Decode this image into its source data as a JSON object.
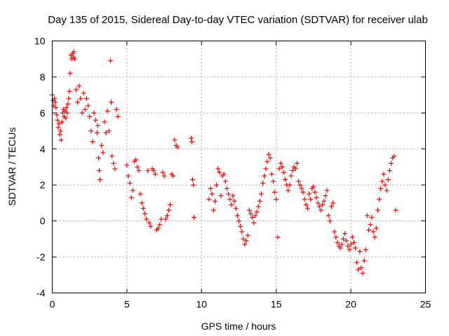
{
  "chart_data": {
    "type": "scatter",
    "title": "Day 135 of 2015, Sidereal Day-to-day VTEC variation (SDTVAR) for receiver ulab",
    "xlabel": "GPS time / hours",
    "ylabel": "SDTVAR / TECUs",
    "xlim": [
      0,
      25
    ],
    "ylim": [
      -4,
      10
    ],
    "xticks": [
      0,
      5,
      10,
      15,
      20,
      25
    ],
    "yticks": [
      -4,
      -2,
      0,
      2,
      4,
      6,
      8,
      10
    ],
    "grid": true,
    "marker": "+",
    "color": "#ff0000",
    "series": [
      {
        "name": "SDTVAR",
        "x": [
          0.0,
          0.05,
          0.1,
          0.15,
          0.2,
          0.25,
          0.3,
          0.35,
          0.4,
          0.45,
          0.5,
          0.55,
          0.6,
          0.65,
          0.7,
          0.75,
          0.8,
          0.85,
          0.9,
          0.95,
          1.0,
          1.05,
          1.1,
          1.15,
          1.2,
          1.25,
          1.3,
          1.35,
          1.4,
          1.45,
          1.5,
          1.6,
          1.7,
          1.8,
          1.9,
          2.0,
          2.1,
          2.2,
          2.3,
          2.4,
          2.5,
          2.6,
          2.7,
          2.8,
          2.9,
          3.0,
          3.05,
          3.1,
          3.15,
          3.2,
          3.3,
          3.4,
          3.5,
          3.6,
          3.7,
          3.8,
          3.9,
          3.95,
          4.0,
          4.1,
          4.2,
          4.3,
          4.4,
          5.0,
          5.1,
          5.2,
          5.3,
          5.4,
          5.5,
          5.6,
          5.7,
          5.8,
          5.9,
          6.0,
          6.1,
          6.2,
          6.3,
          6.4,
          6.5,
          6.6,
          6.7,
          6.8,
          6.9,
          7.0,
          7.1,
          7.2,
          7.3,
          7.4,
          7.5,
          7.6,
          7.7,
          7.8,
          7.9,
          8.0,
          8.1,
          8.2,
          8.3,
          8.4,
          9.3,
          9.35,
          9.4,
          9.45,
          9.5,
          10.5,
          10.6,
          10.7,
          10.8,
          10.9,
          11.0,
          11.1,
          11.2,
          11.3,
          11.4,
          11.5,
          11.6,
          11.7,
          11.8,
          11.9,
          12.0,
          12.1,
          12.2,
          12.3,
          12.4,
          12.5,
          12.6,
          12.7,
          12.8,
          12.9,
          13.0,
          13.1,
          13.2,
          13.3,
          13.4,
          13.5,
          13.6,
          13.7,
          13.8,
          13.9,
          14.0,
          14.1,
          14.2,
          14.3,
          14.4,
          14.5,
          14.6,
          14.7,
          14.8,
          14.9,
          15.0,
          15.1,
          15.2,
          15.3,
          15.4,
          15.5,
          15.6,
          15.7,
          15.8,
          15.9,
          16.0,
          16.1,
          16.2,
          16.3,
          16.4,
          16.5,
          16.6,
          16.7,
          16.8,
          16.9,
          17.0,
          17.1,
          17.2,
          17.3,
          17.4,
          17.5,
          17.6,
          17.7,
          17.8,
          17.9,
          18.0,
          18.1,
          18.2,
          18.3,
          18.4,
          18.5,
          18.6,
          18.7,
          18.8,
          18.9,
          19.0,
          19.1,
          19.2,
          19.3,
          19.4,
          19.5,
          19.6,
          19.7,
          19.8,
          19.9,
          20.0,
          20.1,
          20.2,
          20.3,
          20.4,
          20.5,
          20.6,
          20.7,
          20.8,
          20.9,
          21.0,
          21.1,
          21.2,
          21.3,
          21.4,
          21.5,
          21.6,
          21.7,
          21.8,
          21.9,
          22.0,
          22.1,
          22.2,
          22.3,
          22.4,
          22.5,
          22.6,
          22.7,
          22.8,
          22.9,
          23.0
        ],
        "y": [
          7.0,
          6.7,
          6.4,
          6.8,
          6.6,
          6.3,
          5.9,
          5.6,
          5.2,
          5.4,
          4.8,
          5.0,
          4.5,
          5.5,
          6.0,
          6.2,
          5.8,
          6.1,
          5.7,
          6.3,
          6.0,
          6.5,
          6.8,
          7.2,
          8.2,
          9.2,
          9.0,
          9.3,
          9.1,
          9.4,
          9.0,
          7.3,
          6.6,
          7.5,
          6.8,
          6.0,
          7.1,
          6.2,
          6.8,
          6.4,
          5.8,
          5.0,
          4.4,
          6.0,
          5.6,
          4.9,
          5.3,
          3.5,
          2.8,
          2.3,
          4.2,
          3.8,
          5.5,
          4.9,
          6.1,
          5.0,
          8.9,
          6.6,
          3.6,
          3.2,
          2.9,
          6.2,
          5.8,
          3.1,
          2.5,
          2.1,
          1.3,
          1.7,
          3.3,
          3.4,
          3.0,
          2.8,
          1.5,
          1.0,
          0.7,
          0.4,
          0.1,
          2.8,
          -0.1,
          -0.3,
          2.9,
          2.8,
          2.6,
          -0.5,
          -0.4,
          -0.2,
          0.1,
          2.7,
          2.5,
          0.1,
          0.3,
          0.6,
          0.9,
          2.6,
          2.5,
          4.5,
          4.2,
          4.1,
          4.6,
          4.4,
          2.3,
          2.0,
          0.2,
          1.2,
          1.8,
          1.5,
          0.6,
          1.1,
          2.0,
          2.9,
          2.7,
          1.4,
          2.5,
          2.6,
          2.2,
          1.8,
          1.5,
          1.2,
          0.9,
          1.4,
          1.1,
          0.7,
          0.3,
          0.0,
          -0.3,
          -0.6,
          -1.0,
          -1.3,
          -1.1,
          -0.8,
          0.6,
          0.4,
          0.2,
          -0.1,
          0.3,
          0.5,
          0.8,
          1.1,
          1.5,
          2.1,
          2.5,
          2.9,
          3.3,
          3.7,
          3.5,
          2.6,
          2.2,
          1.6,
          1.2,
          -0.9,
          2.9,
          3.2,
          3.0,
          2.7,
          2.3,
          2.0,
          1.7,
          2.0,
          2.5,
          2.8,
          3.0,
          2.9,
          3.2,
          2.2,
          2.0,
          1.8,
          1.6,
          1.2,
          0.9,
          0.7,
          1.5,
          1.2,
          1.8,
          1.9,
          1.6,
          1.3,
          1.0,
          0.8,
          0.6,
          0.9,
          1.1,
          1.4,
          1.7,
          0.3,
          0.0,
          0.8,
          1.0,
          -0.6,
          -0.9,
          -1.2,
          -1.4,
          -1.5,
          -1.3,
          -1.0,
          -0.7,
          -1.1,
          -1.4,
          -1.6,
          -1.3,
          -0.9,
          -1.2,
          -1.5,
          -2.3,
          -2.7,
          -1.7,
          -2.6,
          -2.9,
          -2.2,
          -1.6,
          0.3,
          -0.5,
          -0.2,
          0.2,
          -0.6,
          -0.9,
          -0.4,
          0.6,
          1.2,
          1.8,
          2.2,
          2.6,
          2.0,
          1.7,
          2.3,
          2.8,
          3.2,
          3.5,
          3.6,
          0.6
        ]
      }
    ]
  }
}
